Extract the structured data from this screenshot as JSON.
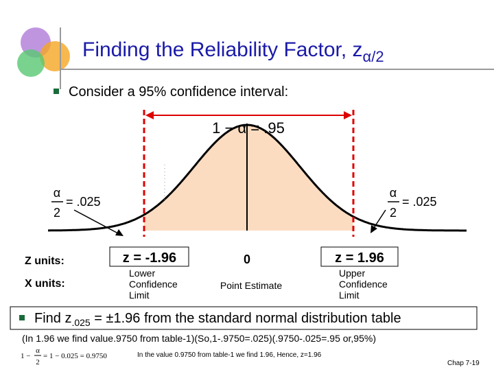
{
  "header": {
    "title": "Finding the Reliability Factor, z",
    "title_subscript": "α/2"
  },
  "bullets": [
    "Consider a 95% confidence interval:",
    {
      "text_before": "Find z",
      "subscript": ".025",
      "text_after": " = ±1.96 from the standard normal distribution table"
    }
  ],
  "diagram": {
    "center_label": "1 − α = .95",
    "left_tail": {
      "numerator": "α",
      "denominator": "2",
      "value": "= .025"
    },
    "right_tail": {
      "numerator": "α",
      "denominator": "2",
      "value": "= .025"
    },
    "z_row": {
      "label": "Z units:",
      "left": "z = -1.96",
      "center": "0",
      "right": "z = 1.96"
    },
    "x_row": {
      "label": "X units:",
      "left": "Lower Confidence Limit",
      "center": "Point Estimate",
      "right": "Upper Confidence Limit"
    }
  },
  "notes": [
    "(In 1.96 we find value.9750 from table-1)(So,1-.9750=.025)(.9750-.025=.95 or,95%)",
    "In the value 0.9750 from table-1 we find 1.96, Hence, z=1.96"
  ],
  "formula": {
    "lhs_one": "1 −",
    "numerator": "α",
    "denominator": "2",
    "rhs": "= 1 − 0.025 = 0.9750"
  },
  "footer": "Chap 7-19"
}
